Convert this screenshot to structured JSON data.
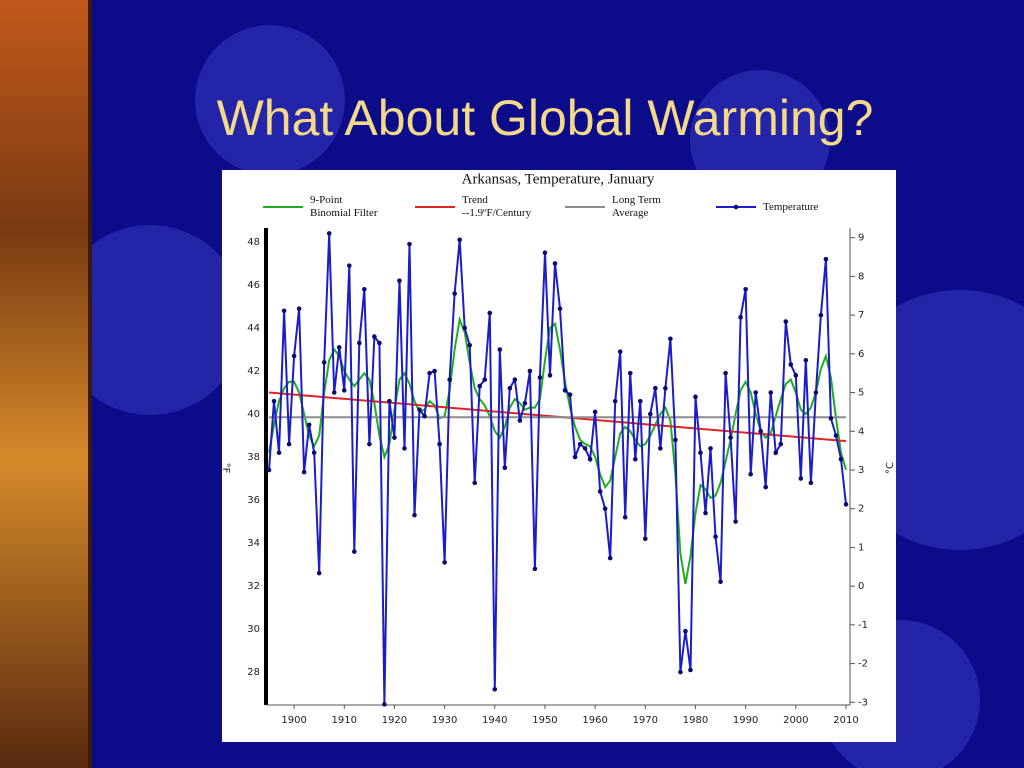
{
  "title": "What About Global Warming?",
  "chart_data": {
    "type": "line",
    "title": "Arkansas, Temperature, January",
    "y_label": "°F",
    "y2_label": "°C",
    "x": [
      1895,
      1896,
      1897,
      1898,
      1899,
      1900,
      1901,
      1902,
      1903,
      1904,
      1905,
      1906,
      1907,
      1908,
      1909,
      1910,
      1911,
      1912,
      1913,
      1914,
      1915,
      1916,
      1917,
      1918,
      1919,
      1920,
      1921,
      1922,
      1923,
      1924,
      1925,
      1926,
      1927,
      1928,
      1929,
      1930,
      1931,
      1932,
      1933,
      1934,
      1935,
      1936,
      1937,
      1938,
      1939,
      1940,
      1941,
      1942,
      1943,
      1944,
      1945,
      1946,
      1947,
      1948,
      1949,
      1950,
      1951,
      1952,
      1953,
      1954,
      1955,
      1956,
      1957,
      1958,
      1959,
      1960,
      1961,
      1962,
      1963,
      1964,
      1965,
      1966,
      1967,
      1968,
      1969,
      1970,
      1971,
      1972,
      1973,
      1974,
      1975,
      1976,
      1977,
      1978,
      1979,
      1980,
      1981,
      1982,
      1983,
      1984,
      1985,
      1986,
      1987,
      1988,
      1989,
      1990,
      1991,
      1992,
      1993,
      1994,
      1995,
      1996,
      1997,
      1998,
      1999,
      2000,
      2001,
      2002,
      2003,
      2004,
      2005,
      2006,
      2007,
      2008,
      2009,
      2010
    ],
    "xlim": [
      1894.4,
      2010.8
    ],
    "xticks": [
      1900,
      1910,
      1920,
      1930,
      1940,
      1950,
      1960,
      1970,
      1980,
      1990,
      2000,
      2010
    ],
    "ylim": [
      26.47,
      48.65
    ],
    "yticks": [
      28,
      30,
      32,
      34,
      36,
      38,
      40,
      42,
      44,
      46,
      48
    ],
    "y2lim": [
      -3.07,
      9.25
    ],
    "y2ticks": [
      -3,
      -2,
      -1,
      0,
      1,
      2,
      3,
      4,
      5,
      6,
      7,
      8,
      9
    ],
    "series": [
      {
        "name": "9-Point\nBinomial Filter",
        "color": "#1fae1f",
        "values": [
          38.2,
          39.5,
          40.6,
          41.2,
          41.5,
          41.5,
          41.0,
          40.0,
          39.0,
          38.5,
          39.0,
          41.0,
          42.5,
          43.0,
          42.7,
          42.0,
          41.6,
          41.3,
          41.6,
          41.9,
          41.6,
          40.5,
          39.0,
          38.0,
          38.6,
          40.2,
          41.6,
          41.9,
          41.4,
          40.6,
          40.1,
          40.2,
          40.6,
          40.4,
          39.8,
          39.9,
          41.1,
          43.0,
          44.4,
          43.8,
          42.4,
          41.2,
          40.7,
          40.4,
          39.9,
          39.2,
          38.9,
          39.4,
          40.3,
          40.7,
          40.5,
          40.2,
          40.3,
          40.3,
          40.7,
          42.5,
          44.0,
          44.2,
          43.0,
          41.5,
          40.3,
          39.4,
          38.8,
          38.6,
          38.5,
          38.0,
          37.2,
          36.6,
          36.9,
          38.0,
          39.1,
          39.4,
          39.2,
          38.8,
          38.5,
          38.6,
          39.0,
          39.5,
          40.0,
          40.3,
          39.7,
          37.2,
          33.5,
          32.1,
          33.4,
          35.4,
          36.7,
          36.5,
          36.1,
          36.2,
          36.8,
          37.8,
          38.8,
          40.0,
          41.1,
          41.5,
          41.0,
          40.0,
          39.2,
          38.9,
          39.1,
          39.9,
          40.7,
          41.4,
          41.6,
          41.0,
          40.2,
          40.0,
          40.3,
          41.0,
          42.1,
          42.7,
          41.7,
          39.8,
          38.2,
          37.4
        ]
      },
      {
        "name": "Trend\n--1.9ºF/Century",
        "color": "#e02424",
        "x": [
          1895,
          2010
        ],
        "values": [
          41.0,
          38.74
        ]
      },
      {
        "name": "Long Term\nAverage",
        "color": "#8c8c8c",
        "x": [
          1895,
          2010
        ],
        "values": [
          39.85,
          39.85
        ]
      },
      {
        "name": "Temperature",
        "color": "#1c1cc8",
        "marker": true,
        "values": [
          37.4,
          40.6,
          38.2,
          44.8,
          38.6,
          42.7,
          44.9,
          37.3,
          39.5,
          38.2,
          32.6,
          42.4,
          48.4,
          41.0,
          43.1,
          41.1,
          46.9,
          33.6,
          43.3,
          45.8,
          38.6,
          43.6,
          43.3,
          26.5,
          40.6,
          38.9,
          46.2,
          38.4,
          47.9,
          35.3,
          40.2,
          39.9,
          41.9,
          42.0,
          38.6,
          33.1,
          41.6,
          45.6,
          48.1,
          44.0,
          43.2,
          36.8,
          41.3,
          41.6,
          44.7,
          27.2,
          43.0,
          37.5,
          41.2,
          41.6,
          39.7,
          40.5,
          42.0,
          32.8,
          41.7,
          47.5,
          41.8,
          47.0,
          44.9,
          41.1,
          40.9,
          38.0,
          38.6,
          38.4,
          37.9,
          40.1,
          36.4,
          35.6,
          33.3,
          40.6,
          42.9,
          35.2,
          41.9,
          37.9,
          40.6,
          34.2,
          40.0,
          41.2,
          38.4,
          41.2,
          43.5,
          38.8,
          28.0,
          29.9,
          28.1,
          40.8,
          38.2,
          35.4,
          38.4,
          34.3,
          32.2,
          41.9,
          38.9,
          35.0,
          44.5,
          45.8,
          37.2,
          41.0,
          39.2,
          36.6,
          41.0,
          38.2,
          38.6,
          44.3,
          42.3,
          41.8,
          37.0,
          42.5,
          36.8,
          41.0,
          44.6,
          47.2,
          39.8,
          39.0,
          37.9,
          35.8
        ]
      }
    ]
  }
}
